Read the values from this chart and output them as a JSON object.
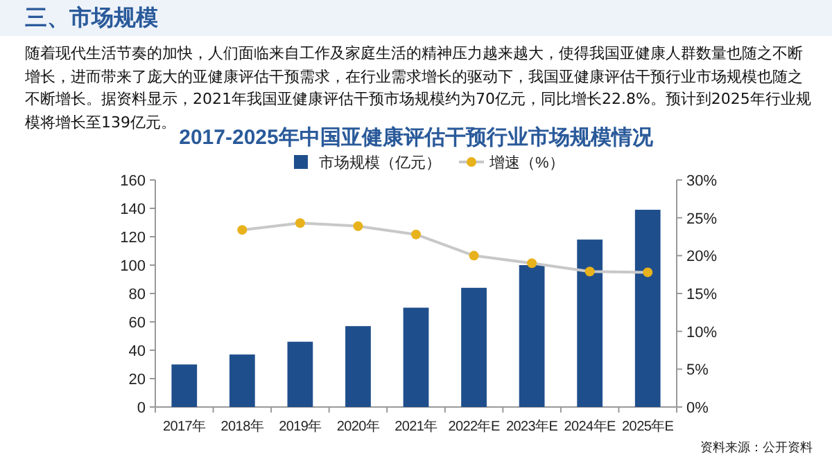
{
  "chart_data": {
    "type": "bar",
    "title": "2017-2025年中国亚健康评估干预行业市场规模情况",
    "annotations": [
      "三、市场规模",
      "随着现代生活节奏的加快，人们面临来自工作及家庭生活的精神压力越来越大，使得我国亚健康人群数量也随之不断增长，进而带来了庞大的亚健康评估干预需求，在行业需求增长的驱动下，我国亚健康评估干预行业市场规模也随之不断增长。据资料显示，2021年我国亚健康评估干预市场规模约为70亿元，同比增长22.8%。预计到2025年行业规模将增长至139亿元。",
      "资料来源：公开资料"
    ],
    "categories": [
      "2017年",
      "2018年",
      "2019年",
      "2020年",
      "2021年",
      "2022年E",
      "2023年E",
      "2024年E",
      "2025年E"
    ],
    "series": [
      {
        "name": "市场规模（亿元）",
        "color": "#1f4e8c",
        "values": [
          30,
          37,
          46,
          57,
          70,
          84,
          100,
          118,
          139
        ]
      },
      {
        "name": "增速（%）",
        "type": "line",
        "axis": "y2",
        "color": "#e8b21c",
        "marker": "circle",
        "values": [
          null,
          23.4,
          24.3,
          23.9,
          22.8,
          20.0,
          19.0,
          17.9,
          17.8
        ]
      }
    ],
    "ylim": [
      0,
      160
    ],
    "yticks": [
      0,
      20,
      40,
      60,
      80,
      100,
      120,
      140,
      160
    ],
    "y2lim": [
      0,
      30
    ],
    "y2ticks": [
      {
        "value": 0,
        "label": "0%"
      },
      {
        "value": 5,
        "label": "5%"
      },
      {
        "value": 10,
        "label": "10%"
      },
      {
        "value": 15,
        "label": "15%"
      },
      {
        "value": 20,
        "label": "20%"
      },
      {
        "value": 25,
        "label": "25%"
      },
      {
        "value": 30,
        "label": "30%"
      }
    ],
    "legend": "top",
    "grid": false
  }
}
